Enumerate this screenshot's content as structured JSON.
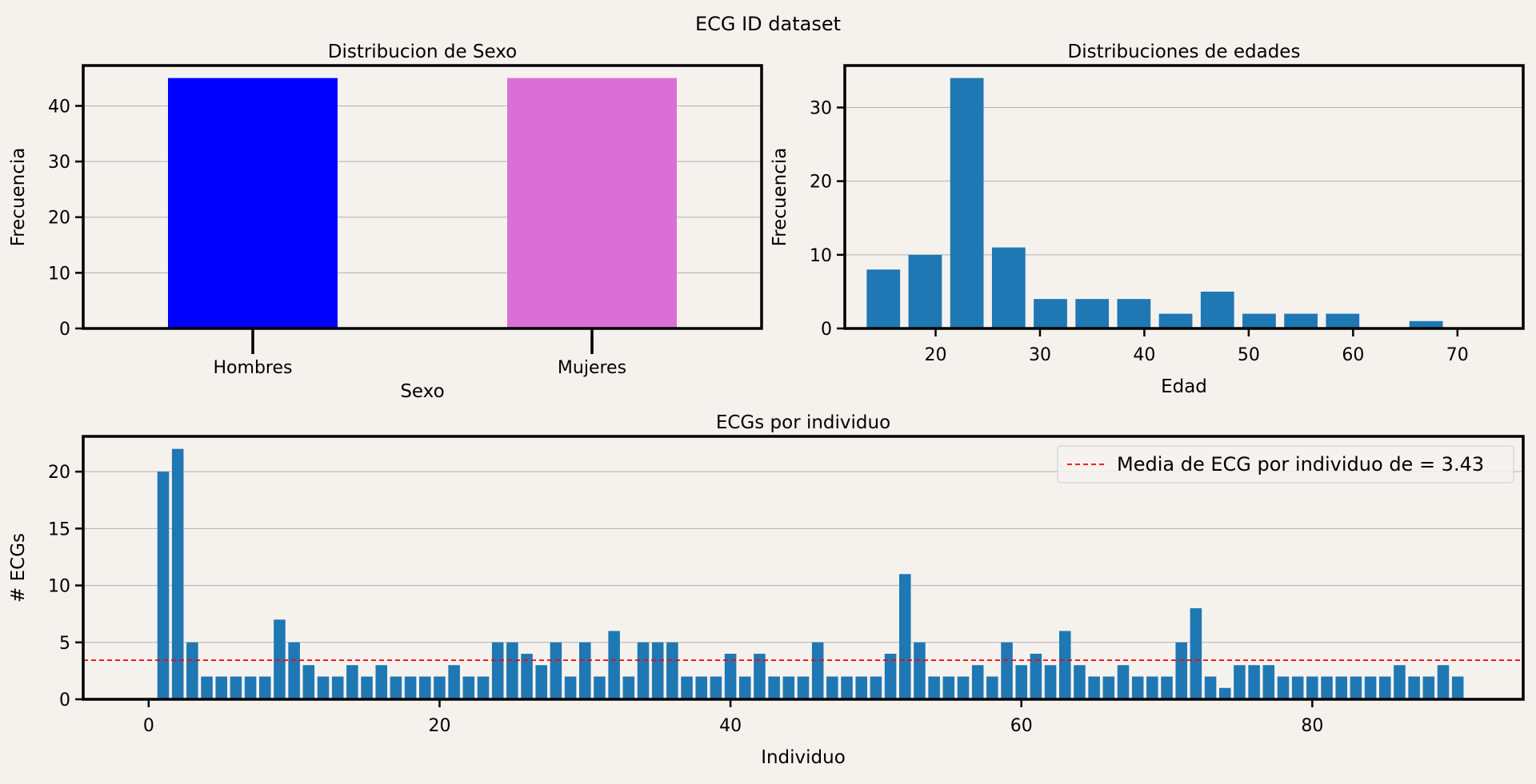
{
  "figure": {
    "suptitle": "ECG ID dataset",
    "background": "#f5f2ee"
  },
  "chart_data": [
    {
      "id": "sexo",
      "type": "bar",
      "title": "Distribucion de Sexo",
      "xlabel": "Sexo",
      "ylabel": "Frecuencia",
      "categories": [
        "Hombres",
        "Mujeres"
      ],
      "values": [
        45,
        45
      ],
      "colors": [
        "#0000ff",
        "#da70d6"
      ],
      "ylim": [
        0,
        47.25
      ],
      "yticks": [
        0,
        10,
        20,
        30,
        40
      ],
      "grid": "y"
    },
    {
      "id": "edades",
      "type": "bar",
      "title": "Distribuciones de edades",
      "xlabel": "Edad",
      "ylabel": "Frecuencia",
      "x": [
        15,
        19,
        23,
        27,
        31,
        35,
        39,
        43,
        47,
        51,
        55,
        59,
        63,
        67
      ],
      "values": [
        8,
        10,
        34,
        11,
        4,
        4,
        4,
        2,
        5,
        2,
        2,
        2,
        0,
        1
      ],
      "bar_color": "#1f77b4",
      "xlim": [
        11.3,
        76.3
      ],
      "xticks": [
        20,
        30,
        40,
        50,
        60,
        70
      ],
      "ylim": [
        0,
        35.7
      ],
      "yticks": [
        0,
        10,
        20,
        30
      ],
      "grid": "y"
    },
    {
      "id": "ecgs",
      "type": "bar",
      "title": "ECGs por individuo",
      "xlabel": "Individuo",
      "ylabel": "# ECGs",
      "x_start": 1,
      "values": [
        20,
        22,
        5,
        2,
        2,
        2,
        2,
        2,
        7,
        5,
        3,
        2,
        2,
        3,
        2,
        3,
        2,
        2,
        2,
        2,
        3,
        2,
        2,
        5,
        5,
        4,
        3,
        5,
        2,
        5,
        2,
        6,
        2,
        5,
        5,
        5,
        2,
        2,
        2,
        4,
        2,
        4,
        2,
        2,
        2,
        5,
        2,
        2,
        2,
        2,
        4,
        11,
        5,
        2,
        2,
        2,
        3,
        2,
        5,
        3,
        4,
        3,
        6,
        3,
        2,
        2,
        3,
        2,
        2,
        2,
        5,
        8,
        2,
        1,
        3,
        3,
        3,
        2,
        2,
        2,
        2,
        2,
        2,
        2,
        2,
        3,
        2,
        2,
        3,
        2
      ],
      "bar_color": "#1f77b4",
      "xlim": [
        -4.5,
        94.5
      ],
      "xticks": [
        0,
        20,
        40,
        60,
        80
      ],
      "ylim": [
        0,
        23.1
      ],
      "yticks": [
        0,
        5,
        10,
        15,
        20
      ],
      "grid": "y",
      "mean_line": {
        "value": 3.43,
        "color": "#ff0000",
        "style": "dashed"
      },
      "legend": {
        "label": "Media de ECG por individuo de = 3.43",
        "placement": "upper right"
      }
    }
  ]
}
